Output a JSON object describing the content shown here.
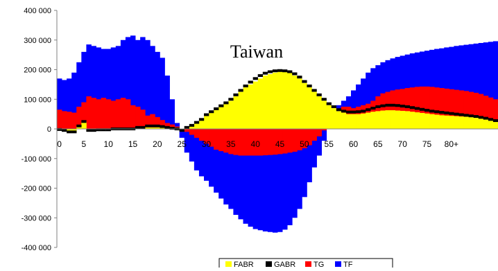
{
  "chart_data": {
    "type": "bar",
    "title": "Taiwan",
    "xlabel": "",
    "ylabel": "",
    "ylim": [
      -400000,
      400000
    ],
    "y_ticks": [
      {
        "value": 400000,
        "label": "400 000"
      },
      {
        "value": 300000,
        "label": "300 000"
      },
      {
        "value": 200000,
        "label": "200 000"
      },
      {
        "value": 100000,
        "label": "100 000"
      },
      {
        "value": 0,
        "label": "0"
      },
      {
        "value": -100000,
        "label": "-100 000"
      },
      {
        "value": -200000,
        "label": "-200 000"
      },
      {
        "value": -300000,
        "label": "-300 000"
      },
      {
        "value": -400000,
        "label": "-400 000"
      }
    ],
    "x_ticks": [
      "0",
      "5",
      "10",
      "15",
      "20",
      "25",
      "30",
      "35",
      "40",
      "45",
      "50",
      "55",
      "60",
      "65",
      "70",
      "75",
      "80+"
    ],
    "x_tick_values": [
      0,
      5,
      10,
      15,
      20,
      25,
      30,
      35,
      40,
      45,
      50,
      55,
      60,
      65,
      70,
      75,
      80
    ],
    "x_range": [
      0,
      90
    ],
    "grid": false,
    "legend_position": "bottom",
    "x": [
      0,
      1,
      2,
      3,
      4,
      5,
      6,
      7,
      8,
      9,
      10,
      11,
      12,
      13,
      14,
      15,
      16,
      17,
      18,
      19,
      20,
      21,
      22,
      23,
      24,
      25,
      26,
      27,
      28,
      29,
      30,
      31,
      32,
      33,
      34,
      35,
      36,
      37,
      38,
      39,
      40,
      41,
      42,
      43,
      44,
      45,
      46,
      47,
      48,
      49,
      50,
      51,
      52,
      53,
      54,
      55,
      56,
      57,
      58,
      59,
      60,
      61,
      62,
      63,
      64,
      65,
      66,
      67,
      68,
      69,
      70,
      71,
      72,
      73,
      74,
      75,
      76,
      77,
      78,
      79,
      80,
      81,
      82,
      83,
      84,
      85,
      86,
      87,
      88,
      89
    ],
    "series": [
      {
        "name": "FABR",
        "color": "#FFFF00",
        "values": [
          -2000,
          -5000,
          -10000,
          -10000,
          10000,
          25000,
          -5000,
          -5000,
          -3000,
          -3000,
          -3000,
          0,
          0,
          0,
          0,
          0,
          5000,
          5000,
          5000,
          5000,
          5000,
          5000,
          5000,
          5000,
          5000,
          -5000,
          5000,
          10000,
          20000,
          30000,
          45000,
          55000,
          65000,
          75000,
          85000,
          95000,
          110000,
          125000,
          140000,
          150000,
          160000,
          170000,
          180000,
          185000,
          190000,
          193000,
          192000,
          190000,
          180000,
          170000,
          155000,
          140000,
          125000,
          110000,
          95000,
          80000,
          70000,
          60000,
          55000,
          50000,
          50000,
          50000,
          52000,
          55000,
          58000,
          60000,
          62000,
          63000,
          63000,
          62000,
          61000,
          60000,
          58000,
          56000,
          54000,
          52000,
          50000,
          48000,
          46000,
          45000,
          44000,
          43000,
          42000,
          41000,
          40000,
          38000,
          35000,
          32000,
          28000,
          25000
        ]
      },
      {
        "name": "GABR",
        "color": "#000000",
        "values": [
          -2000,
          -5000,
          -10000,
          -10000,
          10000,
          25000,
          -5000,
          -5000,
          -3000,
          -3000,
          -3000,
          0,
          0,
          0,
          0,
          0,
          5000,
          5000,
          10000,
          10000,
          10000,
          8000,
          5000,
          2000,
          0,
          -5000,
          5000,
          12000,
          22000,
          32000,
          48000,
          58000,
          68000,
          78000,
          88000,
          100000,
          115000,
          130000,
          145000,
          158000,
          170000,
          180000,
          188000,
          193000,
          196000,
          197000,
          196000,
          193000,
          186000,
          175000,
          160000,
          145000,
          130000,
          115000,
          100000,
          85000,
          75000,
          65000,
          60000,
          57000,
          57000,
          58000,
          60000,
          65000,
          70000,
          75000,
          78000,
          80000,
          80000,
          79000,
          77000,
          75000,
          72000,
          69000,
          66000,
          63000,
          60000,
          58000,
          56000,
          54000,
          52000,
          50000,
          48000,
          46000,
          44000,
          42000,
          39000,
          36000,
          32000,
          28000
        ]
      },
      {
        "name": "TG",
        "color": "#FF0000",
        "values": [
          65000,
          60000,
          58000,
          55000,
          75000,
          90000,
          110000,
          105000,
          100000,
          105000,
          100000,
          95000,
          100000,
          105000,
          100000,
          80000,
          75000,
          65000,
          45000,
          50000,
          40000,
          30000,
          20000,
          15000,
          8000,
          0,
          -10000,
          -20000,
          -30000,
          -40000,
          -50000,
          -60000,
          -70000,
          -75000,
          -80000,
          -85000,
          -88000,
          -90000,
          -90000,
          -90000,
          -90000,
          -90000,
          -89000,
          -88000,
          -87000,
          -85000,
          -83000,
          -80000,
          -77000,
          -72000,
          -65000,
          -55000,
          -40000,
          -25000,
          -5000,
          20000,
          40000,
          60000,
          75000,
          75000,
          70000,
          75000,
          80000,
          85000,
          95000,
          110000,
          120000,
          125000,
          130000,
          133000,
          135000,
          138000,
          140000,
          142000,
          143000,
          143000,
          142000,
          140000,
          138000,
          136000,
          134000,
          132000,
          130000,
          128000,
          125000,
          122000,
          118000,
          112000,
          106000,
          100000
        ]
      },
      {
        "name": "TF",
        "color": "#0000FF",
        "values": [
          170000,
          165000,
          170000,
          190000,
          225000,
          260000,
          285000,
          280000,
          275000,
          270000,
          270000,
          275000,
          280000,
          300000,
          310000,
          315000,
          300000,
          310000,
          300000,
          280000,
          260000,
          240000,
          180000,
          100000,
          20000,
          -30000,
          -80000,
          -110000,
          -140000,
          -160000,
          -175000,
          -195000,
          -215000,
          -235000,
          -255000,
          -270000,
          -290000,
          -305000,
          -320000,
          -330000,
          -338000,
          -342000,
          -346000,
          -348000,
          -350000,
          -348000,
          -340000,
          -325000,
          -300000,
          -270000,
          -230000,
          -180000,
          -130000,
          -90000,
          -40000,
          20000,
          60000,
          80000,
          95000,
          110000,
          130000,
          150000,
          170000,
          190000,
          205000,
          215000,
          225000,
          232000,
          238000,
          243000,
          247000,
          251000,
          255000,
          258000,
          261000,
          264000,
          267000,
          270000,
          272000,
          275000,
          277000,
          280000,
          282000,
          284000,
          286000,
          288000,
          290000,
          292000,
          294000,
          296000
        ]
      }
    ]
  }
}
